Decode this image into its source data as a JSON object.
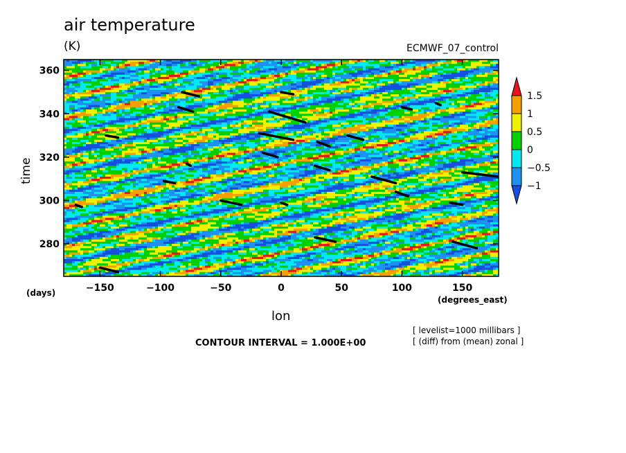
{
  "chart_data": {
    "type": "heatmap",
    "title": "air temperature",
    "units": "(K)",
    "source_label": "ECMWF_07_control",
    "xlabel": "lon",
    "x_units": "(degrees_east)",
    "ylabel": "time",
    "y_units": "(days)",
    "xlim": [
      -180,
      180
    ],
    "ylim": [
      265,
      365
    ],
    "x_ticks": [
      -150,
      -100,
      -50,
      0,
      50,
      100,
      150
    ],
    "x_tick_labels": [
      "−150",
      "−100",
      "−50",
      "0",
      "50",
      "100",
      "150"
    ],
    "y_ticks": [
      280,
      300,
      320,
      340,
      360
    ],
    "y_tick_labels": [
      "280",
      "300",
      "320",
      "340",
      "360"
    ],
    "colorbar": {
      "levels": [
        1.5,
        1,
        0.5,
        0,
        -0.5,
        -1
      ],
      "level_labels": [
        "1.5",
        "1",
        "0.5",
        "0",
        "−0.5",
        "−1"
      ],
      "colors": [
        "#e8141e",
        "#f5a000",
        "#f0f000",
        "#00d000",
        "#00e8f0",
        "#1e90f0",
        "#1450dc"
      ]
    },
    "contour_interval_text": "CONTOUR INTERVAL = 1.000E+00",
    "annotations": [
      "[ levelist=1000 millibars ]",
      "[ (diff) from (mean) zonal ]"
    ],
    "grid": false
  }
}
